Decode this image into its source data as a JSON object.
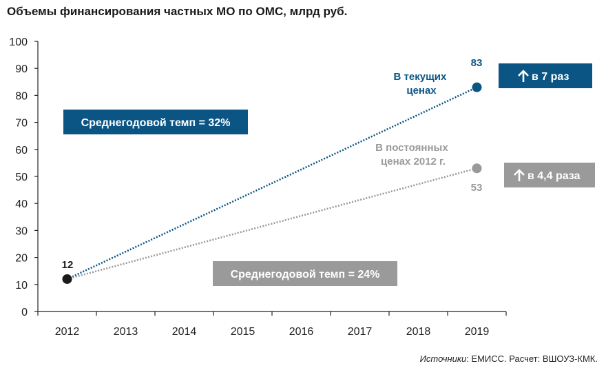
{
  "colors": {
    "current": "#0b5585",
    "constant": "#9a9a9a",
    "start": "#1a1a1a"
  },
  "chart_data": {
    "type": "line",
    "title": "Объемы финансирования частных МО по ОМС, млрд руб.",
    "categories": [
      "2012",
      "2013",
      "2014",
      "2015",
      "2016",
      "2017",
      "2018",
      "2019"
    ],
    "ylim": [
      0,
      100
    ],
    "yticks": [
      "0",
      "10",
      "20",
      "30",
      "40",
      "50",
      "60",
      "70",
      "80",
      "90",
      "100"
    ],
    "grid": false,
    "series": [
      {
        "name": "В текущих ценах",
        "x": [
          "2012",
          "2019"
        ],
        "values": [
          12,
          83
        ],
        "color": "#0b5585"
      },
      {
        "name": "В постоянных ценах 2012 г.",
        "x": [
          "2012",
          "2019"
        ],
        "values": [
          12,
          53
        ],
        "color": "#9a9a9a"
      }
    ],
    "data_labels": {
      "start": "12",
      "current_end": "83",
      "constant_end": "53"
    },
    "annotations": {
      "current_growth": "в 7 раз",
      "constant_growth": "в 4,4 раза",
      "current_rate": "Среднегодовой темп = 32%",
      "constant_rate": "Среднегодовой темп = 24%"
    },
    "source_label": "Источники",
    "source_text": ": ЕМИСС. Расчет: ВШОУЗ-КМК."
  }
}
